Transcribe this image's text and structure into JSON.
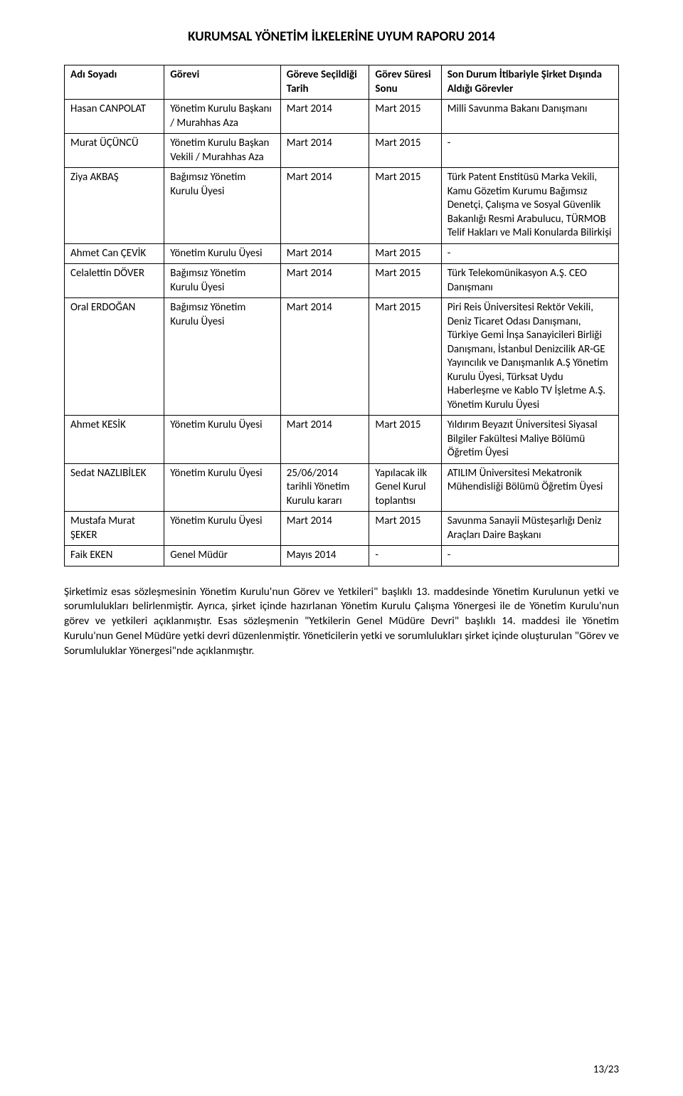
{
  "doc": {
    "title": "KURUMSAL YÖNETİM İLKELERİNE UYUM RAPORU 2014",
    "page_number": "13/23"
  },
  "table": {
    "headers": {
      "c0": "Adı Soyadı",
      "c1": "Görevi",
      "c2": "Göreve Seçildiği Tarih",
      "c3": "Görev Süresi Sonu",
      "c4": "Son Durum İtibariyle Şirket Dışında Aldığı Görevler"
    },
    "rows": [
      {
        "c0": "Hasan CANPOLAT",
        "c1": "Yönetim Kurulu Başkanı / Murahhas Aza",
        "c2": "Mart 2014",
        "c3": "Mart 2015",
        "c4": "Milli Savunma Bakanı Danışmanı"
      },
      {
        "c0": "Murat ÜÇÜNCÜ",
        "c1": "Yönetim Kurulu Başkan Vekili / Murahhas Aza",
        "c2": "Mart 2014",
        "c3": "Mart 2015",
        "c4": "-"
      },
      {
        "c0": "Ziya AKBAŞ",
        "c1": "Bağımsız Yönetim Kurulu Üyesi",
        "c2": "Mart 2014",
        "c3": "Mart 2015",
        "c4": "Türk Patent Enstitüsü Marka Vekili, Kamu Gözetim Kurumu Bağımsız Denetçi, Çalışma ve Sosyal Güvenlik Bakanlığı Resmi Arabulucu, TÜRMOB Telif Hakları ve Mali Konularda Bilirkişi"
      },
      {
        "c0": "Ahmet Can ÇEVİK",
        "c1": "Yönetim Kurulu Üyesi",
        "c2": "Mart 2014",
        "c3": "Mart 2015",
        "c4": "-"
      },
      {
        "c0": "Celalettin DÖVER",
        "c1": "Bağımsız Yönetim Kurulu Üyesi",
        "c2": "Mart 2014",
        "c3": "Mart 2015",
        "c4": "Türk Telekomünikasyon A.Ş. CEO Danışmanı"
      },
      {
        "c0": "Oral ERDOĞAN",
        "c1": "Bağımsız Yönetim Kurulu Üyesi",
        "c2": "Mart 2014",
        "c3": "Mart 2015",
        "c4": "Piri Reis Üniversitesi Rektör Vekili, Deniz Ticaret Odası Danışmanı, Türkiye Gemi İnşa Sanayicileri Birliği Danışmanı, İstanbul Denizcilik AR-GE Yayıncılık ve Danışmanlık A.Ş Yönetim Kurulu Üyesi, Türksat Uydu Haberleşme ve Kablo TV İşletme A.Ş. Yönetim Kurulu Üyesi"
      },
      {
        "c0": "Ahmet KESİK",
        "c1": "Yönetim Kurulu Üyesi",
        "c2": "Mart 2014",
        "c3": "Mart 2015",
        "c4": "Yıldırım Beyazıt Üniversitesi Siyasal Bilgiler Fakültesi Maliye Bölümü Öğretim Üyesi"
      },
      {
        "c0": "Sedat NAZLIBİLEK",
        "c1": "Yönetim Kurulu Üyesi",
        "c2": "25/06/2014 tarihli Yönetim Kurulu kararı",
        "c3": "Yapılacak ilk Genel Kurul toplantısı",
        "c4": "ATILIM Üniversitesi Mekatronik Mühendisliği Bölümü Öğretim Üyesi"
      },
      {
        "c0": "Mustafa Murat ŞEKER",
        "c1": "Yönetim Kurulu Üyesi",
        "c2": "Mart 2014",
        "c3": "Mart 2015",
        "c4": "Savunma Sanayii Müsteşarlığı Deniz Araçları Daire Başkanı"
      },
      {
        "c0": "Faik EKEN",
        "c1": "Genel Müdür",
        "c2": "Mayıs 2014",
        "c3": "-",
        "c4": "-"
      }
    ]
  },
  "body": {
    "paragraph": "Şirketimiz esas sözleşmesinin Yönetim Kurulu'nun Görev ve Yetkileri\" başlıklı 13. maddesinde Yönetim Kurulunun yetki ve sorumlulukları belirlenmiştir. Ayrıca, şirket içinde hazırlanan Yönetim Kurulu Çalışma Yönergesi ile de Yönetim Kurulu'nun görev ve yetkileri açıklanmıştır. Esas sözleşmenin \"Yetkilerin Genel Müdüre Devri\" başlıklı 14. maddesi ile Yönetim Kurulu'nun Genel Müdüre yetki devri düzenlenmiştir. Yöneticilerin yetki ve sorumlulukları şirket içinde oluşturulan \"Görev ve Sorumluluklar Yönergesi\"nde açıklanmıştır."
  }
}
